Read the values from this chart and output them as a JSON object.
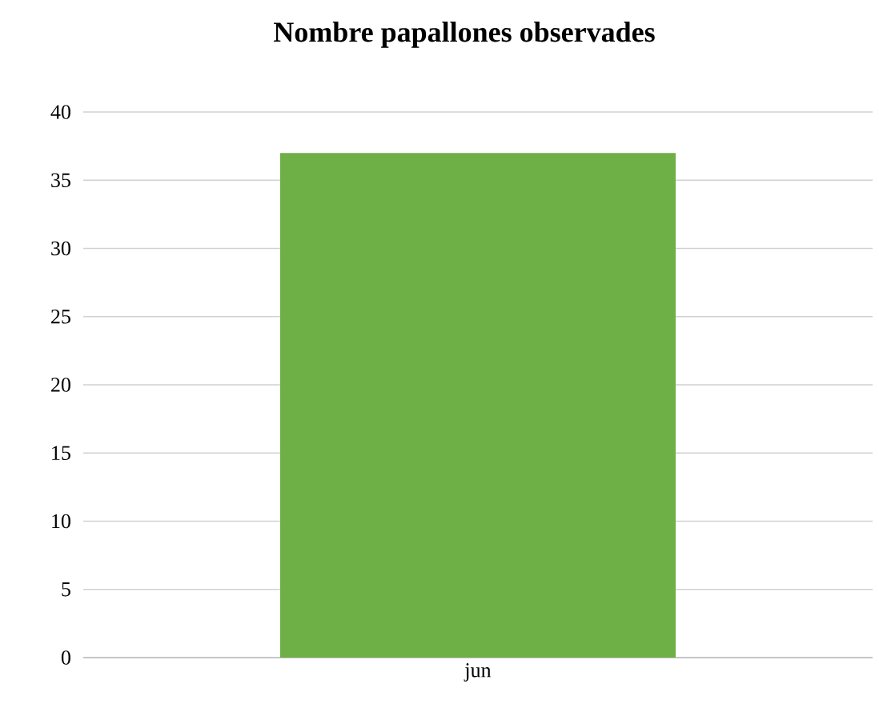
{
  "chart_data": {
    "type": "bar",
    "title": "Nombre papallones observades",
    "categories": [
      "jun"
    ],
    "values": [
      37
    ],
    "color": "#6eaf46",
    "ylim": [
      0,
      40
    ],
    "yticks": [
      0,
      5,
      10,
      15,
      20,
      25,
      30,
      35,
      40
    ],
    "grid": "y"
  }
}
